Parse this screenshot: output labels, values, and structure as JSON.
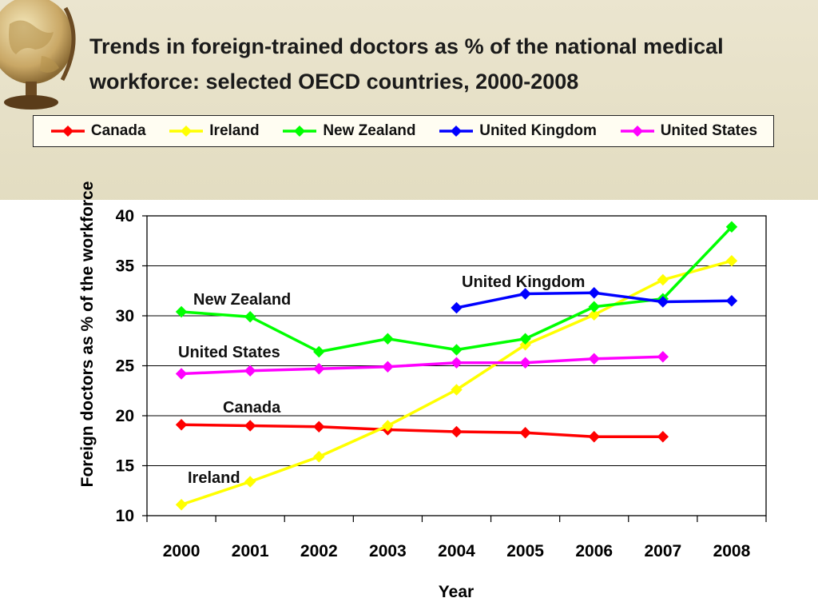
{
  "slide": {
    "title_line1": "Trends in foreign-trained doctors as % of the national medical",
    "title_line2": "workforce: selected OECD countries, 2000-2008"
  },
  "chart_data": {
    "type": "line",
    "title": "Trends in foreign-trained doctors as % of the national medical workforce: selected OECD countries, 2000-2008",
    "xlabel": "Year",
    "ylabel": "Foreign doctors as % of the workforce",
    "categories": [
      "2000",
      "2001",
      "2002",
      "2003",
      "2004",
      "2005",
      "2006",
      "2007",
      "2008"
    ],
    "ylim": [
      10,
      40
    ],
    "yticks": [
      10,
      15,
      20,
      25,
      30,
      35,
      40
    ],
    "grid": "horizontal",
    "legend_position": "top",
    "series": [
      {
        "name": "Canada",
        "color": "#ff0000",
        "values": [
          19.1,
          19.0,
          18.9,
          18.6,
          18.4,
          18.3,
          17.9,
          17.9,
          null
        ]
      },
      {
        "name": "Ireland",
        "color": "#ffff00",
        "values": [
          11.1,
          13.4,
          15.9,
          19.0,
          22.6,
          27.1,
          30.1,
          33.6,
          35.5
        ]
      },
      {
        "name": "New Zealand",
        "color": "#00ff00",
        "values": [
          30.4,
          29.9,
          26.4,
          27.7,
          26.6,
          27.7,
          30.9,
          31.7,
          38.9
        ]
      },
      {
        "name": "United Kingdom",
        "color": "#0000ff",
        "values": [
          null,
          null,
          null,
          null,
          30.8,
          32.2,
          32.3,
          31.4,
          31.5
        ]
      },
      {
        "name": "United States",
        "color": "#ff00ff",
        "values": [
          24.2,
          24.5,
          24.7,
          24.9,
          25.3,
          25.3,
          25.7,
          25.9,
          null
        ]
      }
    ],
    "annotations": [
      "United Kingdom",
      "New Zealand",
      "United States",
      "Canada",
      "Ireland"
    ]
  }
}
